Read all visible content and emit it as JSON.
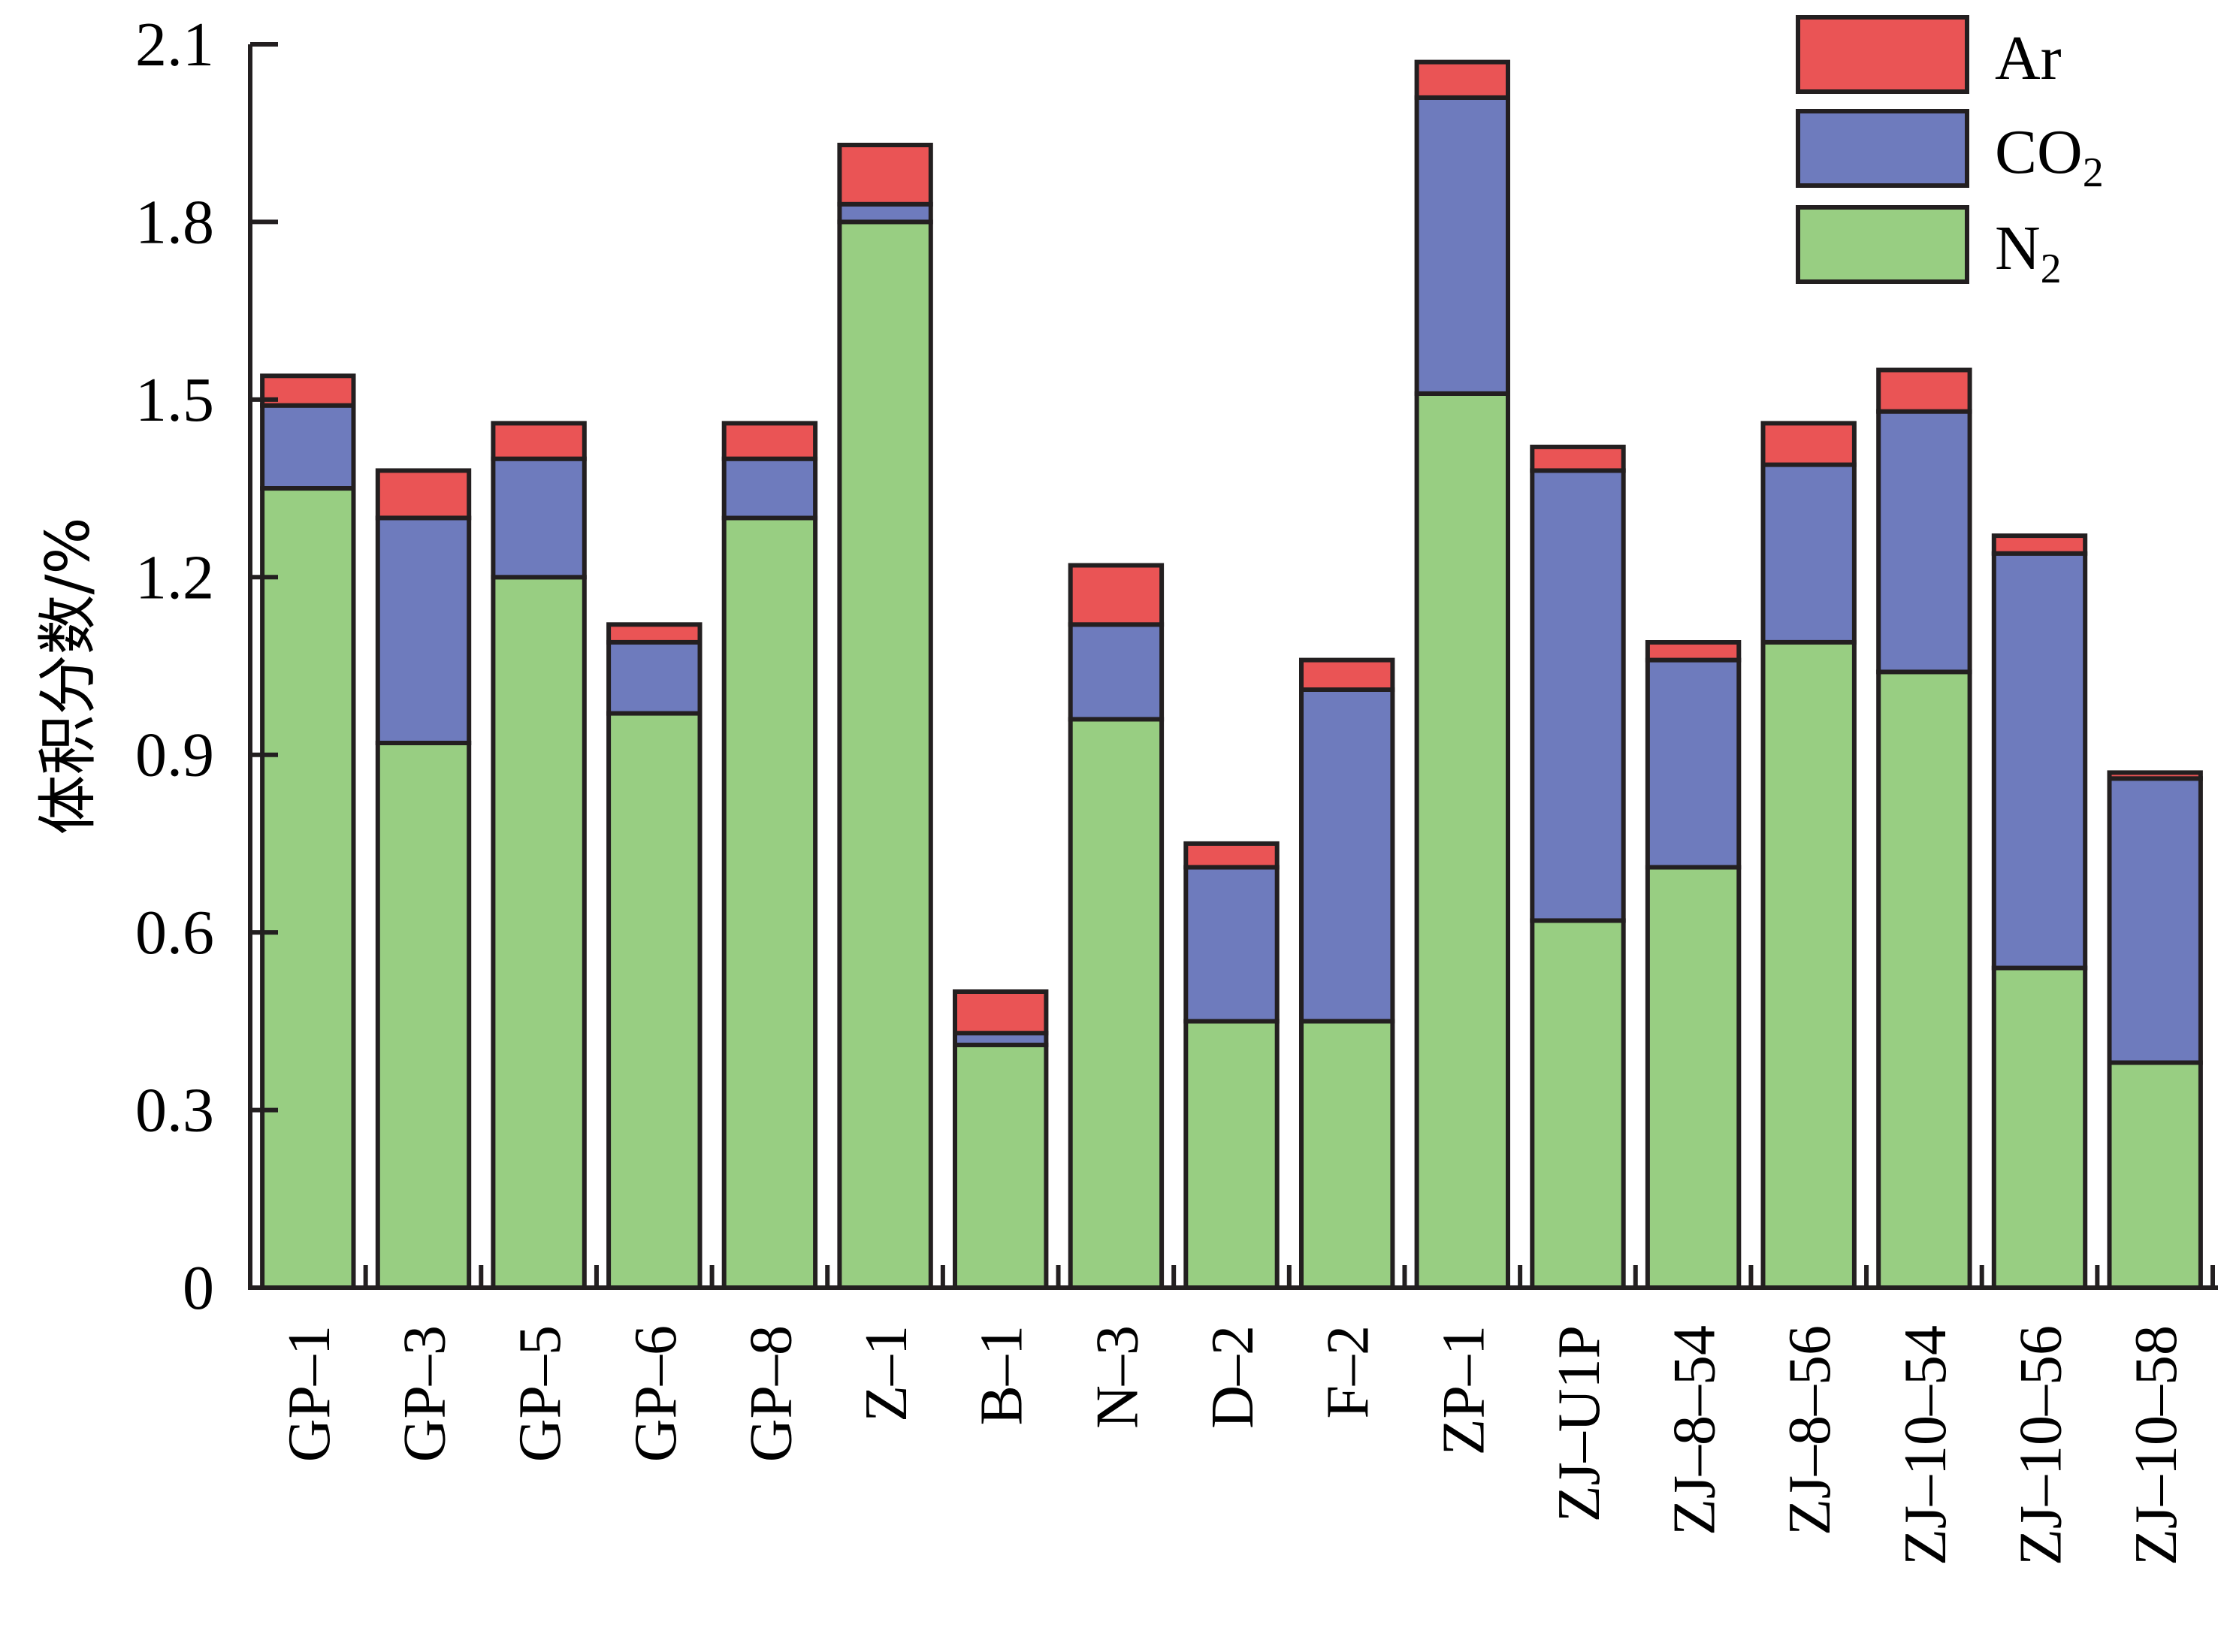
{
  "chart_data": {
    "type": "bar",
    "stacked": true,
    "ylabel": "体积分数/%",
    "xlabel": "",
    "ylim": [
      0,
      2.1
    ],
    "yticks": [
      "0",
      "0.3",
      "0.6",
      "0.9",
      "1.2",
      "1.5",
      "1.8",
      "2.1"
    ],
    "categories": [
      "GP–1",
      "GP–3",
      "GP–5",
      "GP–6",
      "GP–8",
      "Z–1",
      "B–1",
      "N–3",
      "D–2",
      "F–2",
      "ZP–1",
      "ZJ–U1P",
      "ZJ–8–54",
      "ZJ–8–56",
      "ZJ–10–54",
      "ZJ–10–56",
      "ZJ–10–58"
    ],
    "series": [
      {
        "name": "N2",
        "legend_main": "N",
        "legend_sub": "2",
        "color": "#98CE82",
        "values": [
          1.35,
          0.92,
          1.2,
          0.97,
          1.3,
          1.8,
          0.41,
          0.96,
          0.45,
          0.45,
          1.51,
          0.62,
          0.71,
          1.09,
          1.04,
          0.54,
          0.38
        ]
      },
      {
        "name": "CO2",
        "legend_main": "CO",
        "legend_sub": "2",
        "color": "#6E7BBD",
        "values": [
          0.14,
          0.38,
          0.2,
          0.12,
          0.1,
          0.03,
          0.02,
          0.16,
          0.26,
          0.56,
          0.5,
          0.76,
          0.35,
          0.3,
          0.44,
          0.7,
          0.48
        ]
      },
      {
        "name": "Ar",
        "legend_main": "Ar",
        "legend_sub": "",
        "color": "#EA5455",
        "values": [
          0.05,
          0.08,
          0.06,
          0.03,
          0.06,
          0.1,
          0.07,
          0.1,
          0.04,
          0.05,
          0.06,
          0.04,
          0.03,
          0.07,
          0.07,
          0.03,
          0.01
        ]
      }
    ],
    "legend_position": "top-right",
    "legend_order": [
      "Ar",
      "CO2",
      "N2"
    ]
  }
}
